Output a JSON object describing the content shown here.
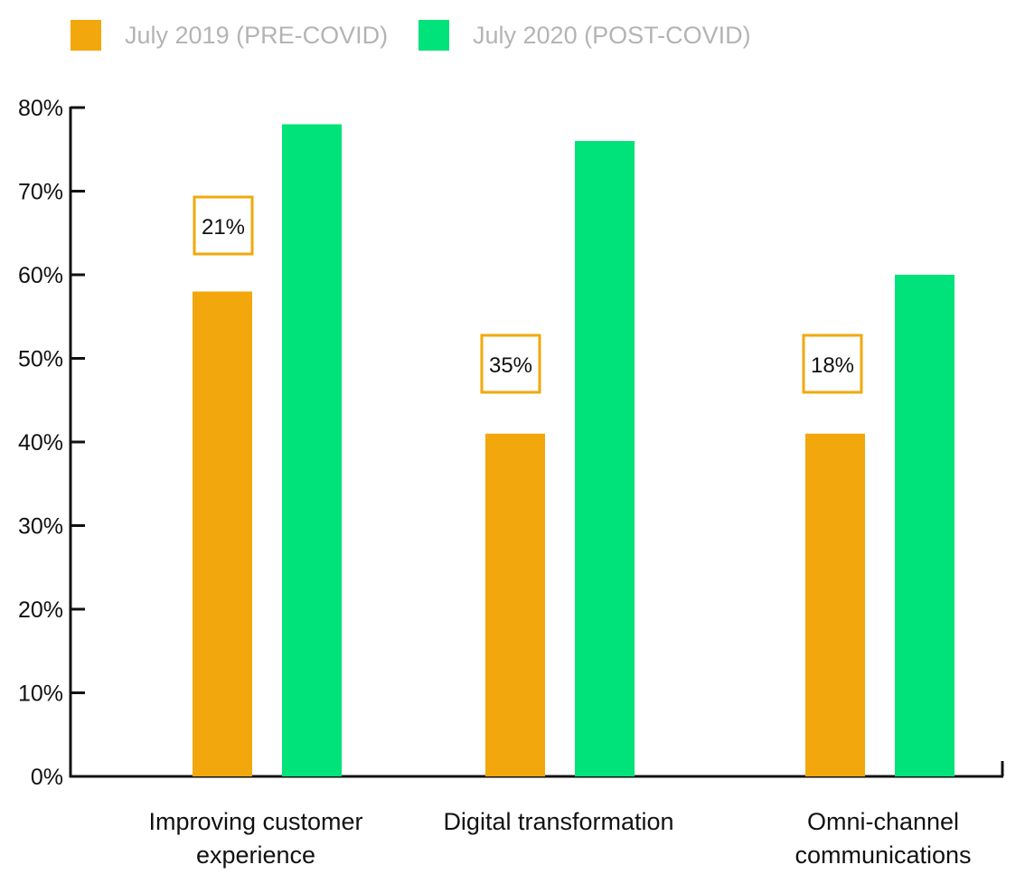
{
  "colors": {
    "pre": "#F2A80C",
    "post": "#00E27A",
    "axis": "#111111",
    "legend_text": "#B4B4B4",
    "annotation_border": "#F2A80C"
  },
  "chart_data": {
    "type": "bar",
    "categories": [
      [
        "Improving customer",
        "experience"
      ],
      [
        "Digital transformation"
      ],
      [
        "Omni-channel",
        "communications"
      ]
    ],
    "series": [
      {
        "name": "July 2019 (PRE-COVID)",
        "color": "#F2A80C",
        "values": [
          58,
          41,
          41
        ]
      },
      {
        "name": "July 2020 (POST-COVID)",
        "color": "#00E27A",
        "values": [
          78,
          76,
          60
        ]
      }
    ],
    "annotations": [
      "21%",
      "35%",
      "18%"
    ],
    "yticks": [
      "0%",
      "10%",
      "20%",
      "30%",
      "40%",
      "50%",
      "60%",
      "70%",
      "80%"
    ],
    "ylim": [
      0,
      80
    ],
    "legend_position": "top-left",
    "grid": false
  }
}
